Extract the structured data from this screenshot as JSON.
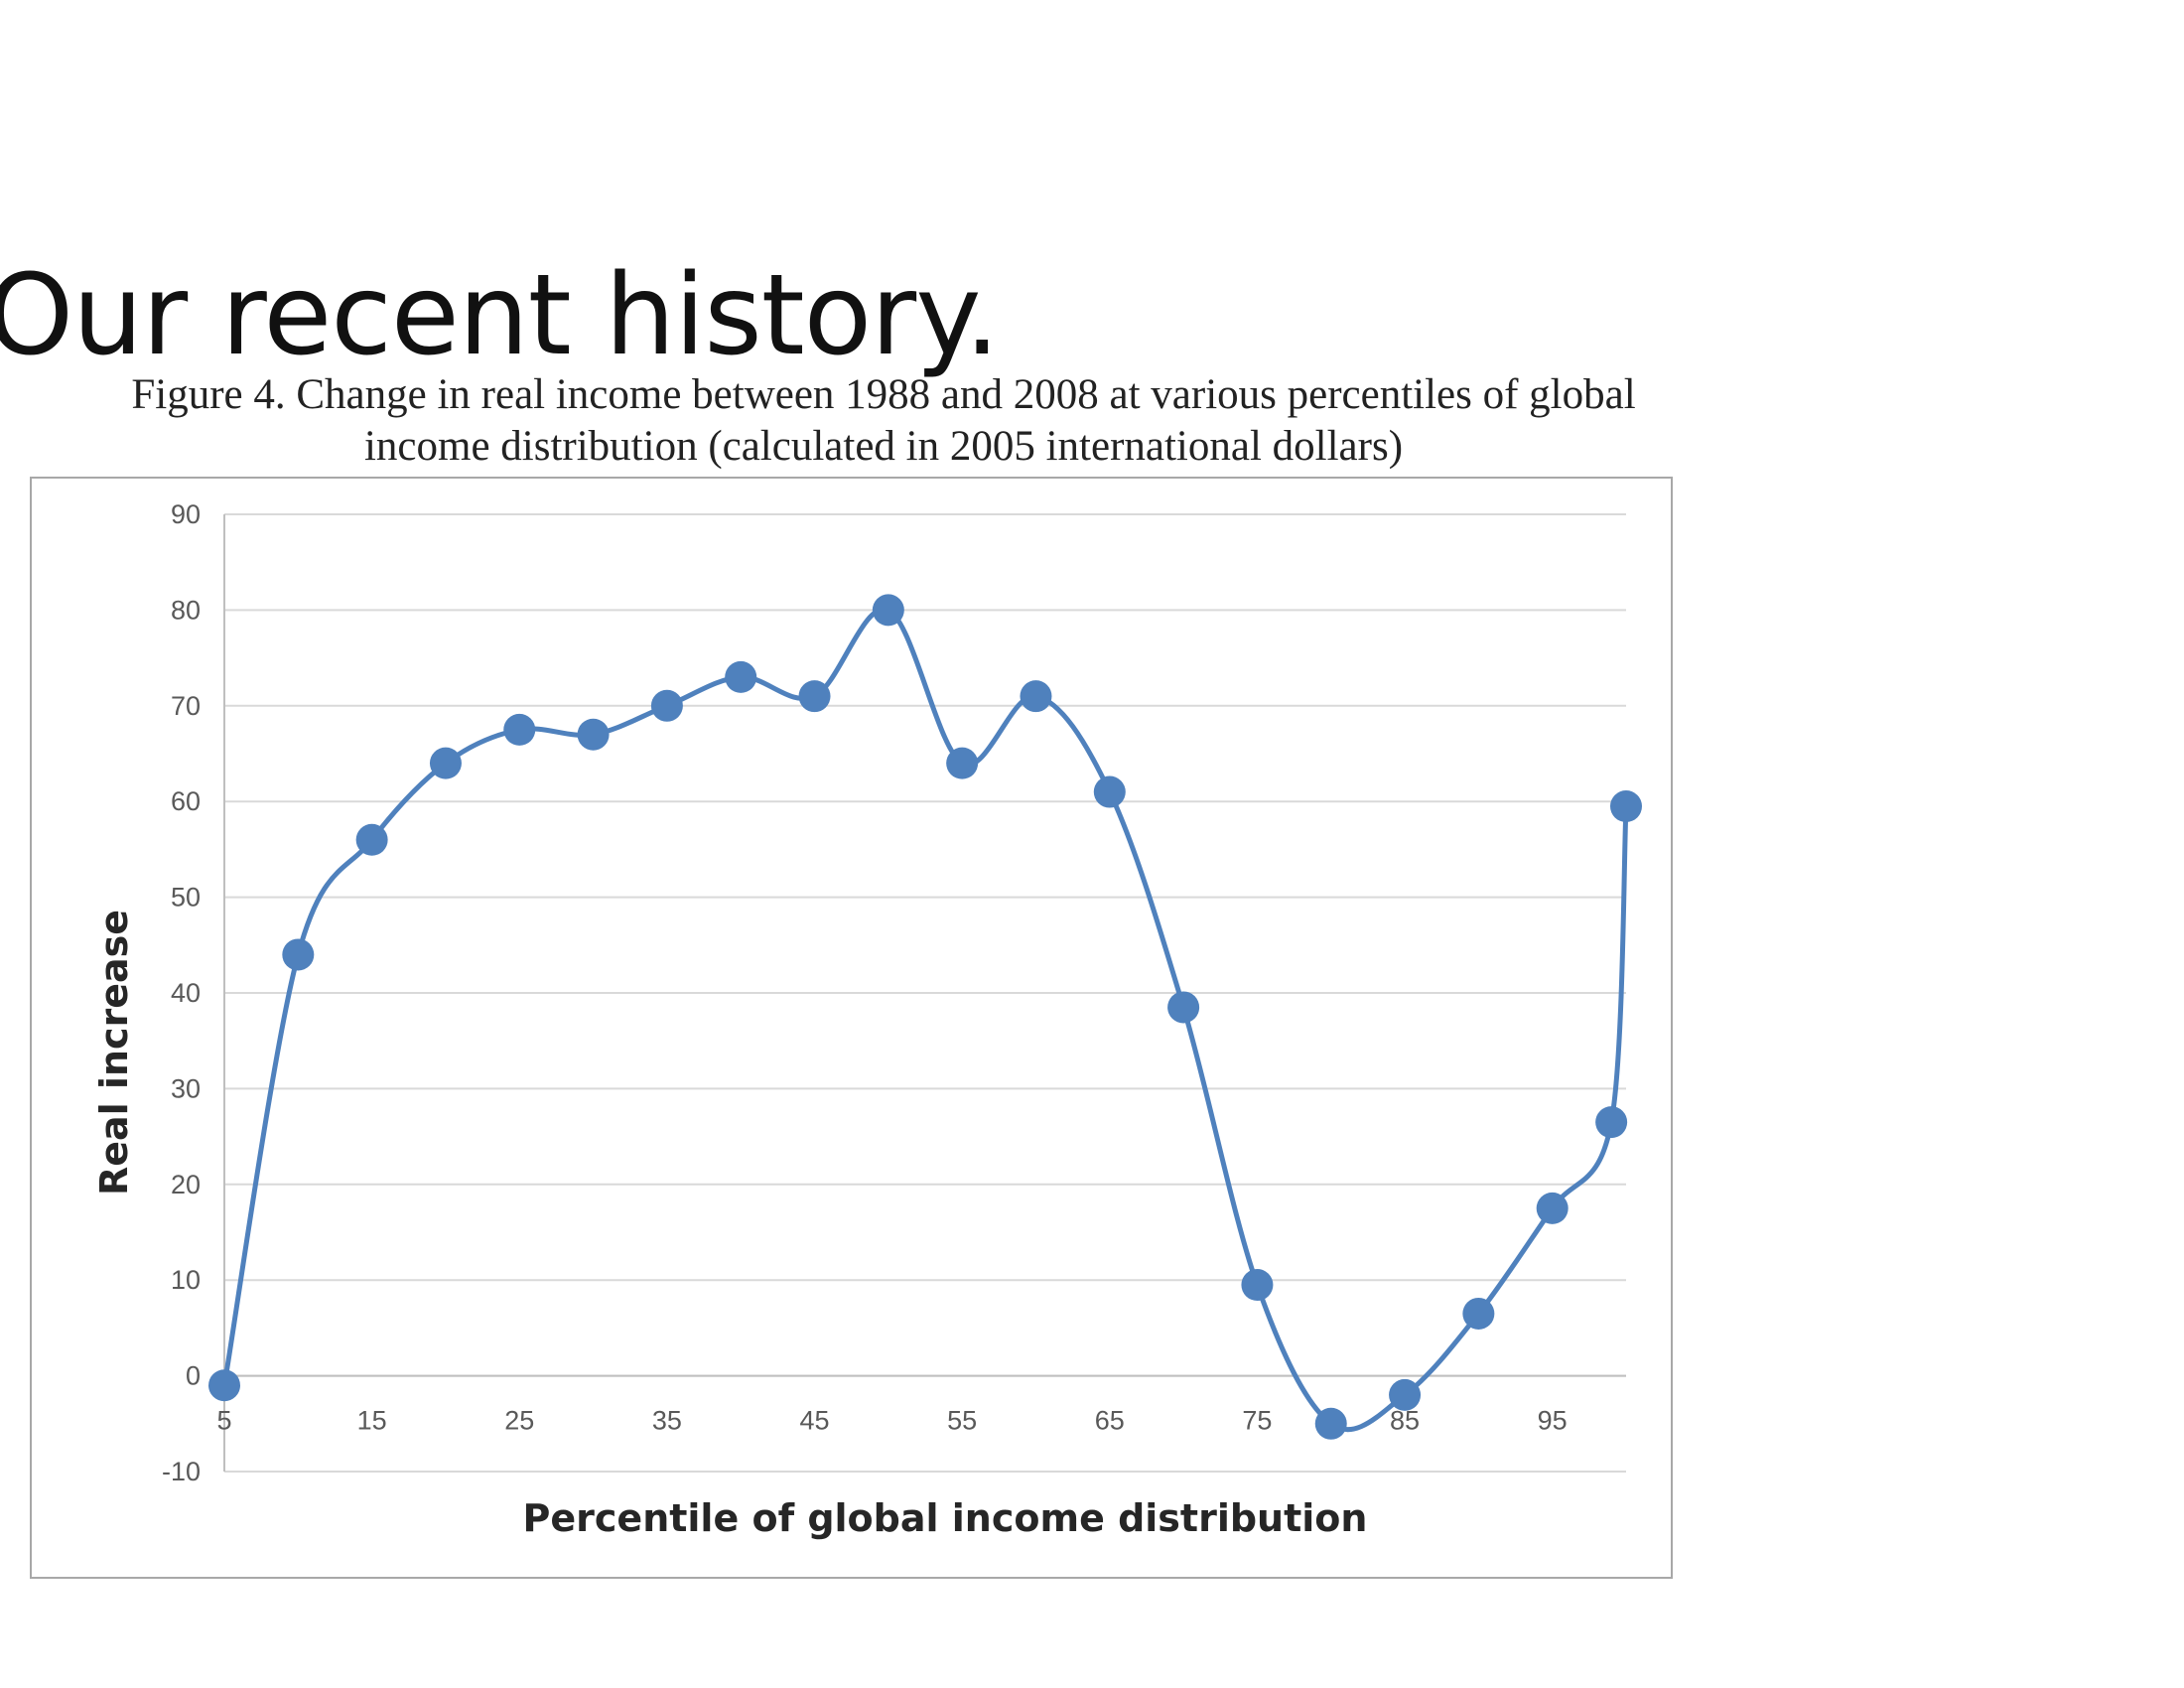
{
  "slide": {
    "title": "Our recent history."
  },
  "figure": {
    "caption_line1": "Figure 4. Change in real income between 1988 and 2008 at various percentiles of global",
    "caption_line2": "income distribution (calculated in 2005 international dollars)"
  },
  "chart_data": {
    "type": "line",
    "title": "Figure 4. Change in real income between 1988 and 2008 at various percentiles of global income distribution (calculated in 2005 international dollars)",
    "xlabel": "Percentile of global income distribution",
    "ylabel": "Real increase",
    "xlim": [
      5,
      100
    ],
    "ylim": [
      -10,
      90
    ],
    "x_ticks": [
      5,
      15,
      25,
      35,
      45,
      55,
      65,
      75,
      85,
      95
    ],
    "y_ticks": [
      -10,
      0,
      10,
      20,
      30,
      40,
      50,
      60,
      70,
      80,
      90
    ],
    "grid": true,
    "smooth": true,
    "markers": true,
    "series_color": "#4F81BD",
    "grid_color": "#d9d9d9",
    "x": [
      5,
      10,
      15,
      20,
      25,
      30,
      35,
      40,
      45,
      50,
      55,
      60,
      65,
      70,
      75,
      80,
      85,
      90,
      95,
      99,
      100
    ],
    "values": [
      -1,
      44,
      56,
      64,
      67.5,
      67,
      70,
      73,
      71,
      80,
      64,
      71,
      61,
      38.5,
      9.5,
      -5,
      -2,
      6.5,
      17.5,
      26.5,
      59.5
    ]
  }
}
